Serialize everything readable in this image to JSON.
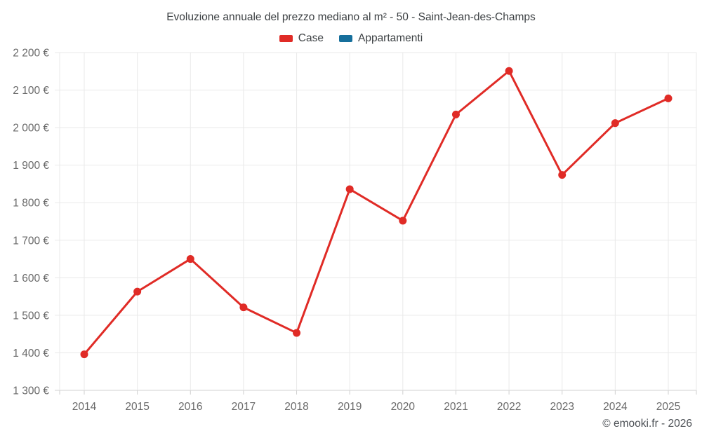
{
  "page": {
    "title": "Evoluzione annuale del prezzo mediano al m² - 50 - Saint-Jean-des-Champs",
    "footer": "© emooki.fr - 2026"
  },
  "legend": {
    "items": [
      {
        "label": "Case",
        "color": "#e02b26"
      },
      {
        "label": "Appartamenti",
        "color": "#166f9c"
      }
    ]
  },
  "chart_data": {
    "type": "line",
    "title": "Evoluzione annuale del prezzo mediano al m² - 50 - Saint-Jean-des-Champs",
    "x": [
      2014,
      2015,
      2016,
      2017,
      2018,
      2019,
      2020,
      2021,
      2022,
      2023,
      2024,
      2025
    ],
    "series": [
      {
        "name": "Case",
        "color": "#e02b26",
        "values": [
          1396,
          1563,
          1650,
          1521,
          1453,
          1836,
          1752,
          2035,
          2151,
          1874,
          2012,
          2078
        ]
      },
      {
        "name": "Appartamenti",
        "color": "#166f9c",
        "values": []
      }
    ],
    "xlabel": "",
    "ylabel": "",
    "ylim": [
      1300,
      2200
    ],
    "yticks": [
      2200,
      2100,
      2000,
      1900,
      1800,
      1700,
      1600,
      1500,
      1400,
      1300
    ],
    "ytick_labels": [
      "2 200 €",
      "2 100 €",
      "2 000 €",
      "1 900 €",
      "1 800 €",
      "1 700 €",
      "1 600 €",
      "1 500 €",
      "1 400 €",
      "1 300 €"
    ],
    "grid": true,
    "legend_position": "top"
  },
  "colors": {
    "grid": "#e9e9e9",
    "axis": "#d2d2d2",
    "tick": "#cfcfcf",
    "title_text": "#3c4043",
    "tick_text": "#6a6a6a",
    "footer_text": "#4d5156",
    "background": "#ffffff"
  }
}
